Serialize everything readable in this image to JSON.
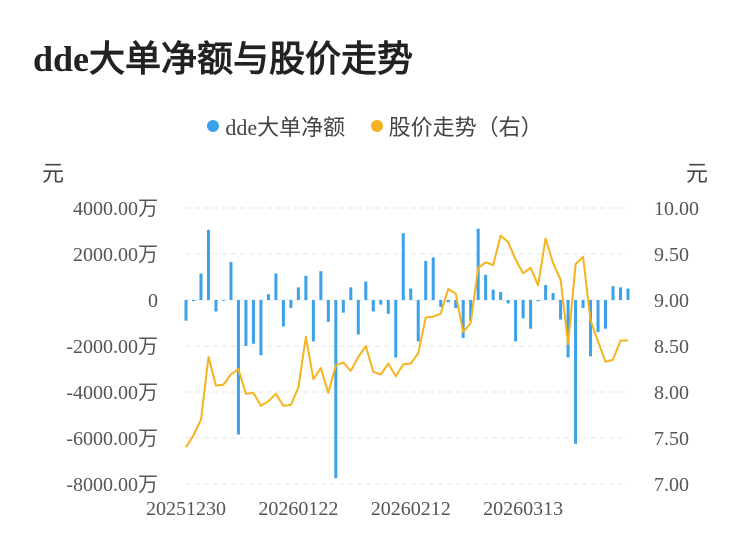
{
  "title": "dde大单净额与股价走势",
  "legend": [
    {
      "label": "dde大单净额",
      "color": "#3ba1e8"
    },
    {
      "label": "股价走势（右）",
      "color": "#f5b31f"
    }
  ],
  "units": {
    "left": "元",
    "right": "元"
  },
  "chart_data": {
    "type": "bar+line",
    "left_axis": {
      "ticks": [
        "4000.00万",
        "2000.00万",
        "0",
        "-2000.00万",
        "-4000.00万",
        "-6000.00万",
        "-8000.00万"
      ],
      "range": [
        -8000,
        4000
      ],
      "unit": "万元"
    },
    "right_axis": {
      "ticks": [
        "10.00",
        "9.50",
        "9.00",
        "8.50",
        "8.00",
        "7.50",
        "7.00"
      ],
      "range": [
        7.0,
        10.0
      ]
    },
    "x_tick_labels": [
      {
        "label": "20251230",
        "index": 0
      },
      {
        "label": "20260122",
        "index": 15
      },
      {
        "label": "20260212",
        "index": 30
      },
      {
        "label": "20260313",
        "index": 45
      }
    ],
    "series": [
      {
        "name": "dde大单净额",
        "kind": "bar",
        "color": "#3ba1e8",
        "values": [
          -900,
          -50,
          1150,
          3050,
          -500,
          0,
          1650,
          -5850,
          -2000,
          -1900,
          -2400,
          250,
          1150,
          -1150,
          -350,
          550,
          1050,
          -1800,
          1250,
          -950,
          -7750,
          -550,
          550,
          -1500,
          800,
          -500,
          -200,
          -600,
          -2500,
          2900,
          500,
          -1800,
          1700,
          1850,
          -300,
          -100,
          -350,
          -1650,
          -900,
          3100,
          1100,
          450,
          350,
          -150,
          -1800,
          -800,
          -1250,
          -50,
          650,
          300,
          -850,
          -2500,
          -6250,
          -350,
          -2450,
          -1400,
          -1250,
          600,
          550,
          500
        ]
      },
      {
        "name": "股价走势（右）",
        "kind": "line",
        "color": "#f5b31f",
        "values": [
          7.4,
          7.53,
          7.7,
          8.38,
          8.07,
          8.08,
          8.19,
          8.25,
          7.98,
          7.99,
          7.85,
          7.9,
          7.98,
          7.85,
          7.86,
          8.05,
          8.6,
          8.14,
          8.26,
          7.99,
          8.29,
          8.32,
          8.23,
          8.38,
          8.5,
          8.22,
          8.19,
          8.31,
          8.17,
          8.3,
          8.31,
          8.42,
          8.81,
          8.82,
          8.85,
          9.12,
          9.07,
          8.65,
          8.75,
          9.35,
          9.41,
          9.38,
          9.7,
          9.63,
          9.44,
          9.29,
          9.35,
          9.16,
          9.67,
          9.4,
          9.22,
          8.52,
          9.39,
          9.47,
          8.78,
          8.55,
          8.33,
          8.35,
          8.56,
          8.56
        ]
      }
    ],
    "grid": "horizontal-dashed",
    "legend_position": "top-center"
  }
}
